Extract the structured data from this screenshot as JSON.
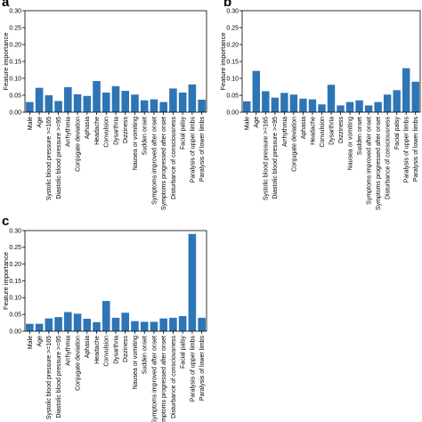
{
  "chart_data": [
    {
      "panel_letter": "a",
      "type": "bar",
      "ylabel": "Feature importance",
      "ylim": [
        0,
        0.3
      ],
      "yticks": [
        "0.00",
        "0.05",
        "0.10",
        "0.15",
        "0.20",
        "0.25",
        "0.30"
      ],
      "grid": false,
      "categories": [
        "Male",
        "Age",
        "Systolic blood pressure >=165",
        "Diastolic blood pressure >=95",
        "Arrhythmia",
        "Conjugate deviation",
        "Aphasia",
        "Headache",
        "Convulsion",
        "Dysarthria",
        "Dizziness",
        "Nausea or vomiting",
        "Sudden onset",
        "Symptoms improved after onset",
        "Symptoms progressed after onset",
        "Disturbance of consciousness",
        "Facial palsy",
        "Paralysis of upper limbs",
        "Paralysis of lower limbs"
      ],
      "values": [
        0.03,
        0.072,
        0.05,
        0.033,
        0.074,
        0.053,
        0.048,
        0.092,
        0.058,
        0.077,
        0.063,
        0.052,
        0.035,
        0.038,
        0.03,
        0.07,
        0.058,
        0.082,
        0.037
      ]
    },
    {
      "panel_letter": "b",
      "type": "bar",
      "ylabel": "Feature importance",
      "ylim": [
        0,
        0.3
      ],
      "yticks": [
        "0.00",
        "0.05",
        "0.10",
        "0.15",
        "0.20",
        "0.25",
        "0.30"
      ],
      "grid": false,
      "categories": [
        "Male",
        "Age",
        "Systolic blood pressure >=165",
        "Diastolic blood pressure >=95",
        "Arrhythmia",
        "Conjugate deviation",
        "Aphasia",
        "Headache",
        "Convulsion",
        "Dysarthria",
        "Dizziness",
        "Nausea or vomiting",
        "Sudden onset",
        "Symptoms improved after onset",
        "Symptoms progressed after onset",
        "Disturbance of consciousness",
        "Facial palsy",
        "Paralysis of upper limbs",
        "Paralysis of lower limbs"
      ],
      "values": [
        0.032,
        0.122,
        0.062,
        0.043,
        0.057,
        0.052,
        0.04,
        0.038,
        0.023,
        0.081,
        0.02,
        0.03,
        0.035,
        0.02,
        0.03,
        0.052,
        0.065,
        0.13,
        0.09
      ]
    },
    {
      "panel_letter": "c",
      "type": "bar",
      "ylabel": "Feature importance",
      "ylim": [
        0,
        0.3
      ],
      "yticks": [
        "0.00",
        "0.05",
        "0.10",
        "0.15",
        "0.20",
        "0.25",
        "0.30"
      ],
      "grid": false,
      "categories": [
        "Male",
        "Age",
        "Systolic blood pressure >=165",
        "Diastolic blood pressure >=95",
        "Arrhythmia",
        "Conjugate deviation",
        "Aphasia",
        "Headache",
        "Convulsion",
        "Dysarthria",
        "Dizziness",
        "Nausea or vomiting",
        "Sudden onset",
        "Symptoms improved after onset",
        "Symptoms progressed after onset",
        "Disturbance of consciousness",
        "Facial palsy",
        "Paralysis of upper limbs",
        "Paralysis of lower limbs"
      ],
      "values": [
        0.022,
        0.022,
        0.038,
        0.042,
        0.057,
        0.052,
        0.037,
        0.027,
        0.09,
        0.04,
        0.055,
        0.03,
        0.028,
        0.028,
        0.038,
        0.04,
        0.045,
        0.29,
        0.04
      ]
    }
  ],
  "colors": {
    "bar": "#2e75b6",
    "axis": "#000000",
    "background": "#ffffff"
  }
}
